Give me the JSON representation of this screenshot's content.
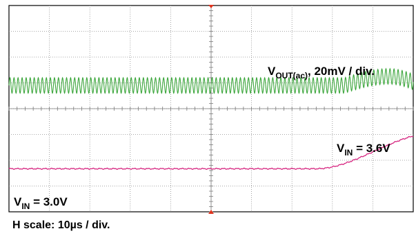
{
  "chart_data": {
    "type": "line",
    "horizontal_divisions": 10,
    "vertical_divisions": 8,
    "grid": true,
    "series": [
      {
        "key": "vout",
        "color": "#3aa53a",
        "label": {
          "main": "V",
          "sub": "OUT(ac)",
          "rest": ", 20mV / div."
        },
        "baseline_div": 4.9,
        "amplitude_div": 0.3,
        "period_div": 0.1,
        "disturbance": {
          "start_div": 8.3,
          "peak_div": 9.4,
          "end_div": 10.2,
          "rise_div": 0.35
        }
      },
      {
        "key": "vin",
        "color": "#d6247f",
        "label_low": {
          "main": "V",
          "sub": "IN",
          "rest": " = 3.0V"
        },
        "label_high": {
          "main": "V",
          "sub": "IN",
          "rest": " = 3.6V"
        },
        "low_value": "3.0V",
        "high_value": "3.6V",
        "low_level_div": 1.67,
        "high_level_div": 3.05,
        "step_start_div": 7.6,
        "step_end_div": 10.5
      }
    ]
  },
  "caption": "H scale: 10µs / div."
}
